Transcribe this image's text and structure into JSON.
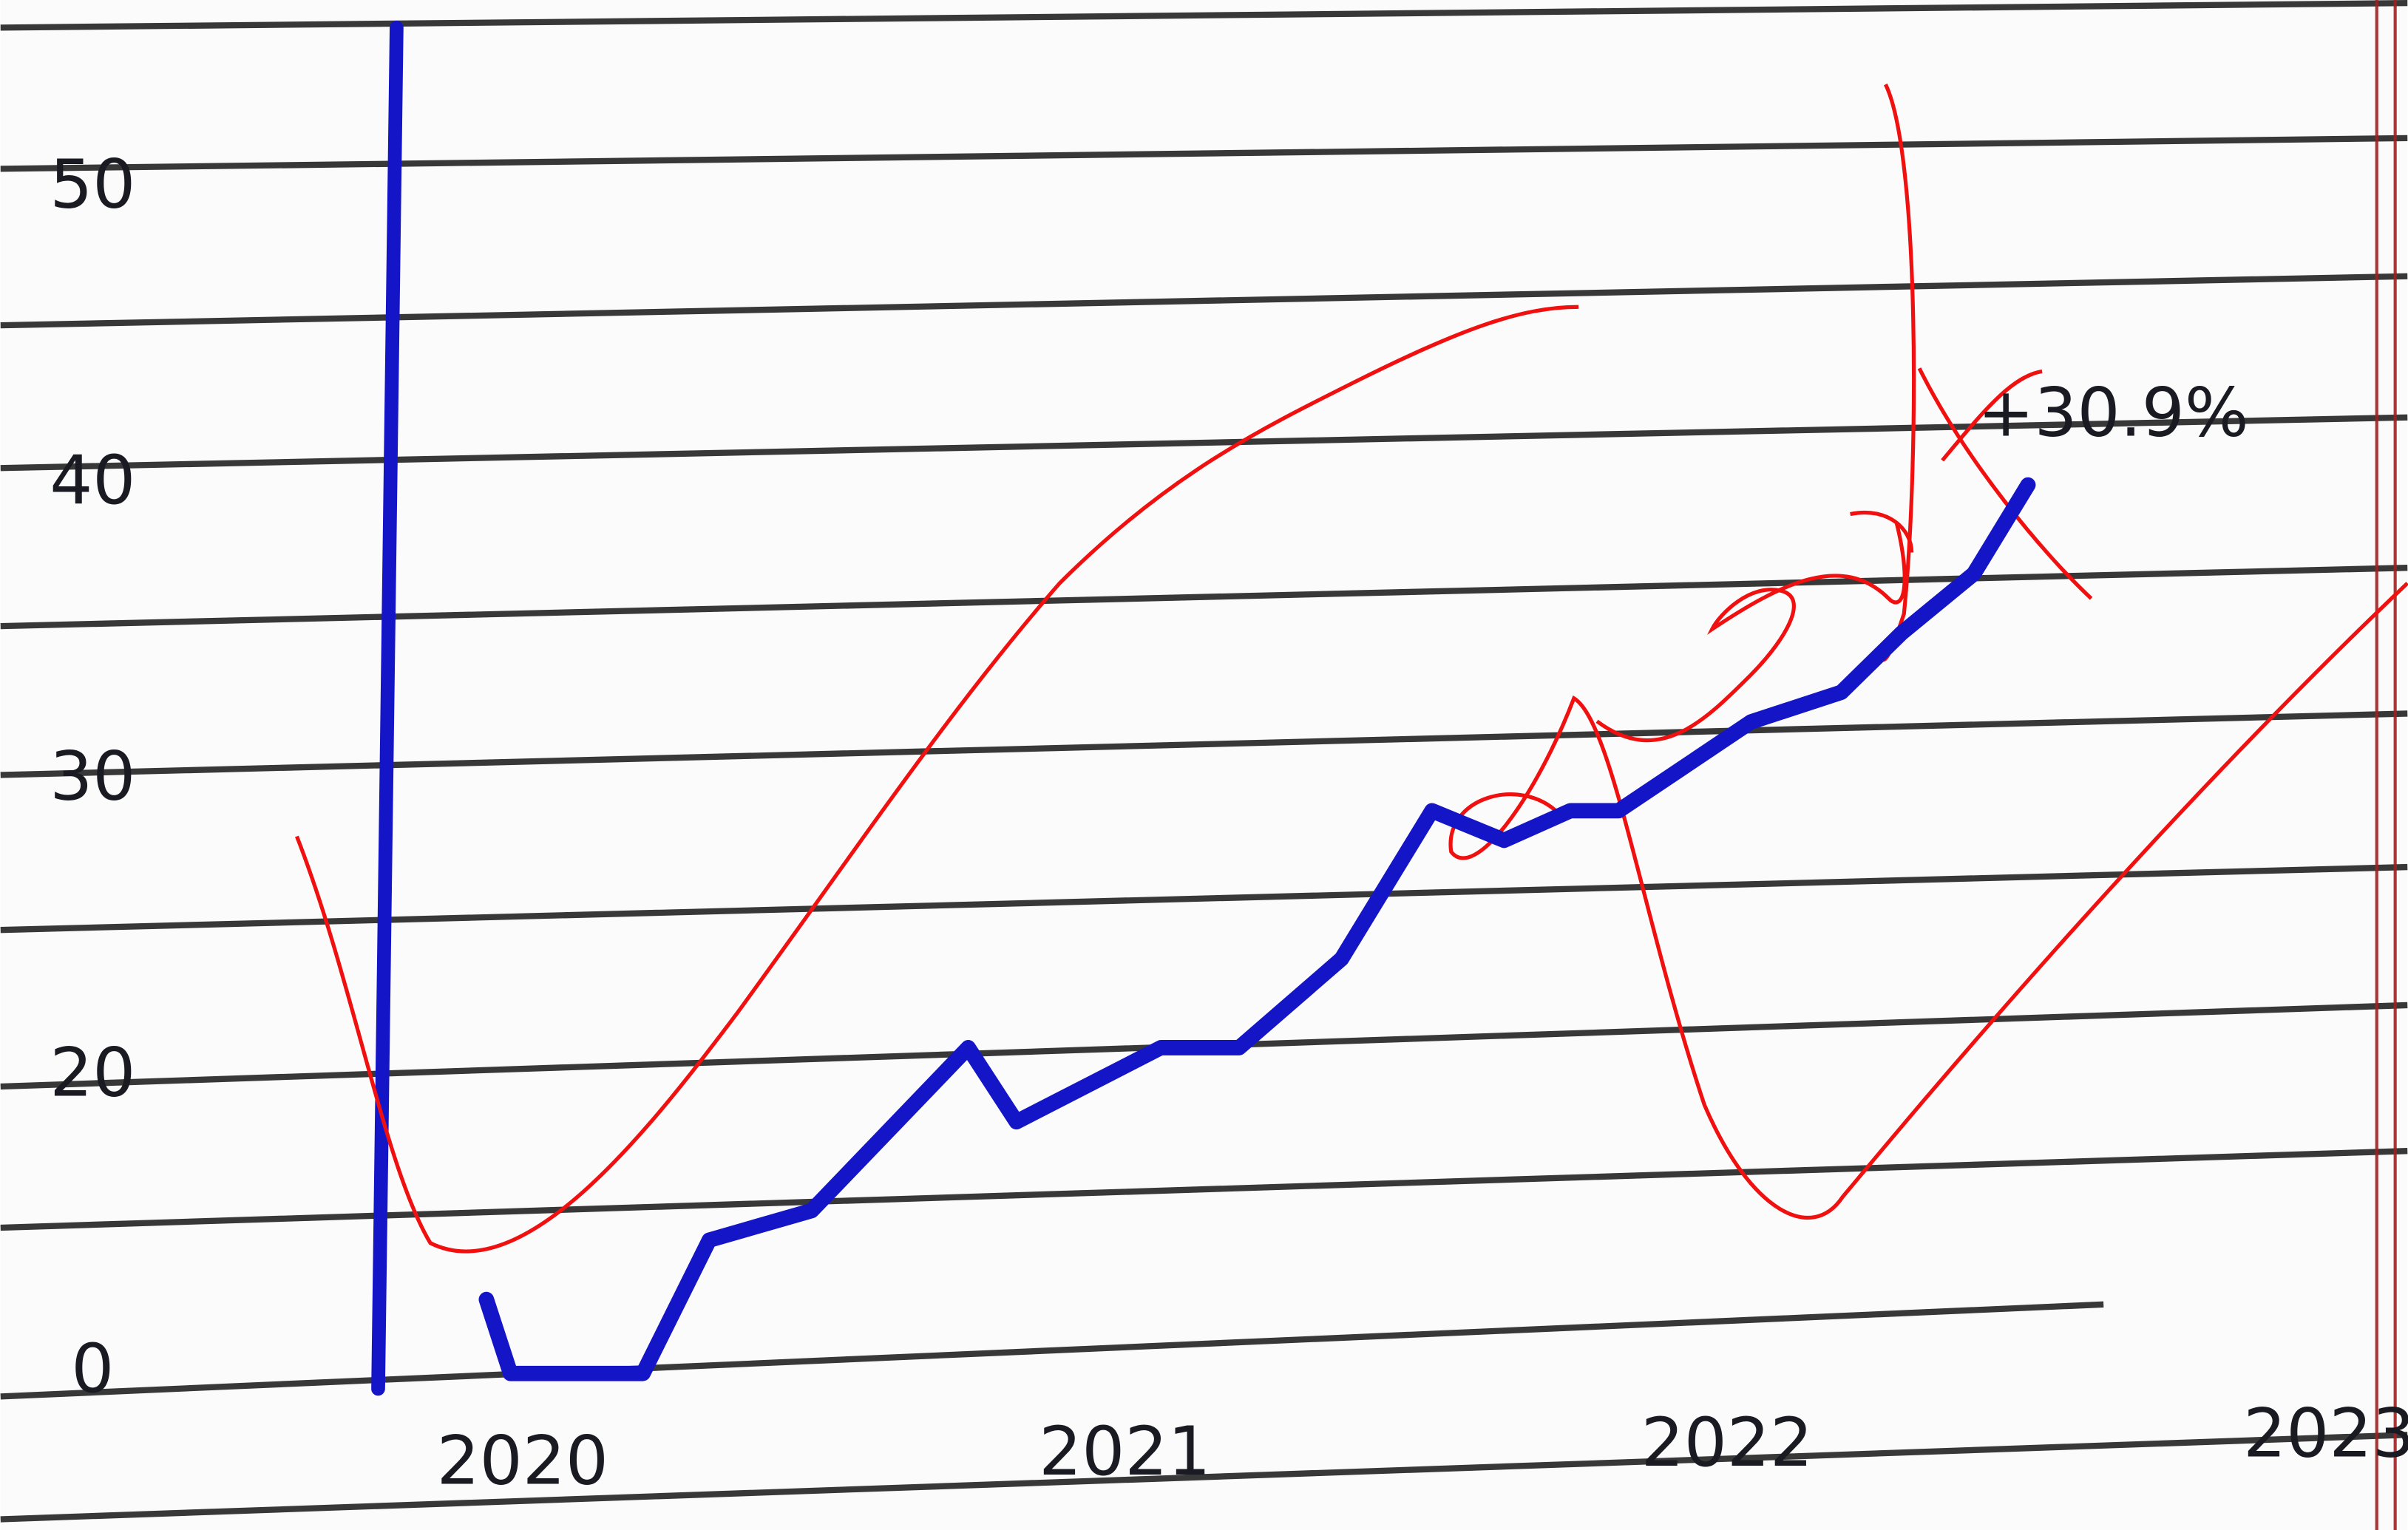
{
  "chart_data": {
    "type": "line",
    "annotation": "+30.9%",
    "x": [
      2019.94,
      2019.98,
      2020.08,
      2020.2,
      2020.31,
      2020.48,
      2020.74,
      2020.82,
      2021.06,
      2021.19,
      2021.36,
      2021.51,
      2021.63,
      2021.74,
      2021.82,
      2022.04,
      2022.19,
      2022.29,
      2022.41,
      2022.5
    ],
    "series": [
      {
        "color": "#1515c8",
        "values": [
          5,
          0,
          0,
          0,
          9,
          11,
          21,
          17,
          21,
          21,
          24,
          29,
          28,
          29,
          29,
          32,
          33,
          35,
          37,
          40
        ]
      }
    ],
    "xlim": [
      2019.75,
      2023.13
    ],
    "xticks": [
      2020,
      2021,
      2022,
      2023
    ],
    "ylim": [
      0,
      50
    ],
    "yticks": [
      0,
      20,
      30,
      40,
      50
    ]
  }
}
